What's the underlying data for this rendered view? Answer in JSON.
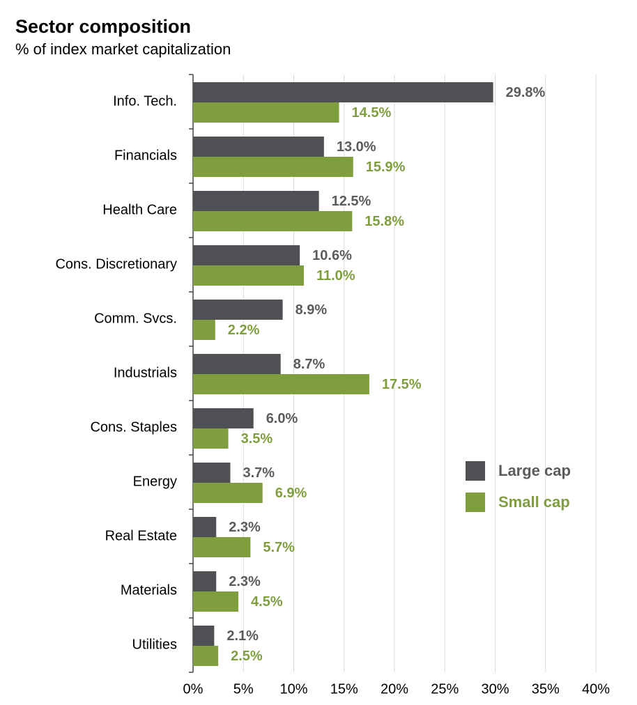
{
  "chart_data": {
    "type": "hbar",
    "title": "Sector composition",
    "subtitle": "% of index market capitalization",
    "categories": [
      "Info. Tech.",
      "Financials",
      "Health Care",
      "Cons. Discretionary",
      "Comm. Svcs.",
      "Industrials",
      "Cons. Staples",
      "Energy",
      "Real Estate",
      "Materials",
      "Utilities"
    ],
    "series": [
      {
        "name": "Large cap",
        "color": "#4f5054",
        "label_color": "#5a5b5e",
        "values": [
          29.8,
          13.0,
          12.5,
          10.6,
          8.9,
          8.7,
          6.0,
          3.7,
          2.3,
          2.3,
          2.1
        ],
        "value_labels": [
          "29.8%",
          "13.0%",
          "12.5%",
          "10.6%",
          "8.9%",
          "8.7%",
          "6.0%",
          "3.7%",
          "2.3%",
          "2.3%",
          "2.1%"
        ]
      },
      {
        "name": "Small cap",
        "color": "#7f9f3e",
        "label_color": "#7f9f3e",
        "values": [
          14.5,
          15.9,
          15.8,
          11.0,
          2.2,
          17.5,
          3.5,
          6.9,
          5.7,
          4.5,
          2.5
        ],
        "value_labels": [
          "14.5%",
          "15.9%",
          "15.8%",
          "11.0%",
          "2.2%",
          "17.5%",
          "3.5%",
          "6.9%",
          "5.7%",
          "4.5%",
          "2.5%"
        ]
      }
    ],
    "xlim": [
      0,
      40
    ],
    "xticks": [
      {
        "value": 0,
        "label": "0%"
      },
      {
        "value": 5,
        "label": "5%"
      },
      {
        "value": 10,
        "label": "10%"
      },
      {
        "value": 15,
        "label": "15%"
      },
      {
        "value": 20,
        "label": "20%"
      },
      {
        "value": 25,
        "label": "25%"
      },
      {
        "value": 30,
        "label": "30%"
      },
      {
        "value": 35,
        "label": "35%"
      },
      {
        "value": 40,
        "label": "40%"
      }
    ],
    "grid": true,
    "legend": "right"
  }
}
